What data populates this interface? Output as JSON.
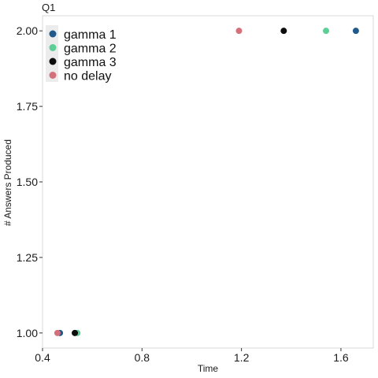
{
  "chart_data": {
    "type": "scatter",
    "title": "Q1",
    "xlabel": "Time",
    "ylabel": "# Answers Produced",
    "xlim": [
      0.4,
      1.73
    ],
    "ylim": [
      0.95,
      2.05
    ],
    "xticks": [
      {
        "value": 0.4,
        "label": "0.4"
      },
      {
        "value": 0.8,
        "label": "0.8"
      },
      {
        "value": 1.2,
        "label": "1.2"
      },
      {
        "value": 1.6,
        "label": "1.6"
      }
    ],
    "yticks": [
      {
        "value": 1.0,
        "label": "1.00"
      },
      {
        "value": 1.25,
        "label": "1.25"
      },
      {
        "value": 1.5,
        "label": "1.50"
      },
      {
        "value": 1.75,
        "label": "1.75"
      },
      {
        "value": 2.0,
        "label": "2.00"
      }
    ],
    "grid": false,
    "legend_position": "top-left",
    "series": [
      {
        "name": "gamma 1",
        "color": "#1f5a8c",
        "points": [
          {
            "x": 0.47,
            "y": 1.0
          },
          {
            "x": 1.66,
            "y": 2.0
          }
        ]
      },
      {
        "name": "gamma 2",
        "color": "#5bcf96",
        "points": [
          {
            "x": 0.54,
            "y": 1.0
          },
          {
            "x": 1.54,
            "y": 2.0
          }
        ]
      },
      {
        "name": "gamma 3",
        "color": "#0d0d0d",
        "points": [
          {
            "x": 0.53,
            "y": 1.0
          },
          {
            "x": 1.37,
            "y": 2.0
          }
        ]
      },
      {
        "name": "no delay",
        "color": "#d4707a",
        "points": [
          {
            "x": 0.46,
            "y": 1.0
          },
          {
            "x": 1.19,
            "y": 2.0
          }
        ]
      }
    ]
  }
}
